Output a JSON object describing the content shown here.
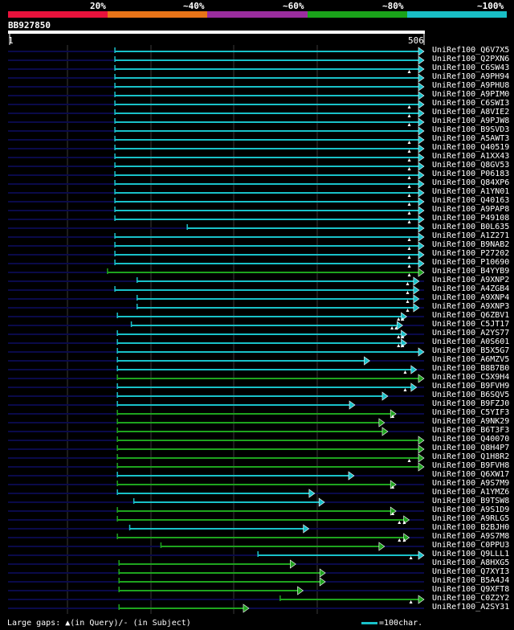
{
  "scale": {
    "segments": [
      {
        "color": "#e8123c"
      },
      {
        "color": "#e87418"
      },
      {
        "color": "#9a2d9e"
      },
      {
        "color": "#1aa31a"
      },
      {
        "color": "#19bfc6"
      }
    ],
    "labels": [
      "20%",
      "~40%",
      "~60%",
      "~80%",
      "~100%"
    ]
  },
  "query": {
    "id": "BB927850",
    "start": "1",
    "end": "506",
    "length": 506
  },
  "colors": {
    "cyan": "#19c1c9",
    "green": "#1ea41e",
    "navy": "#0a0a4a",
    "gap": "#ffffff"
  },
  "hits": [
    {
      "label": "UniRef100_Q6V7X5",
      "qs": 130,
      "qe": 506,
      "c": "cyan",
      "gaps": []
    },
    {
      "label": "UniRef100_Q2PXN6",
      "qs": 130,
      "qe": 506,
      "c": "cyan",
      "gaps": []
    },
    {
      "label": "UniRef100_C6SW43",
      "qs": 130,
      "qe": 506,
      "c": "cyan",
      "gaps": [
        488
      ]
    },
    {
      "label": "UniRef100_A9PH94",
      "qs": 130,
      "qe": 506,
      "c": "cyan",
      "gaps": []
    },
    {
      "label": "UniRef100_A9PHU8",
      "qs": 130,
      "qe": 506,
      "c": "cyan",
      "gaps": []
    },
    {
      "label": "UniRef100_A9PIM0",
      "qs": 130,
      "qe": 506,
      "c": "cyan",
      "gaps": []
    },
    {
      "label": "UniRef100_C6SWI3",
      "qs": 130,
      "qe": 506,
      "c": "cyan",
      "gaps": [
        488
      ]
    },
    {
      "label": "UniRef100_A8VIE2",
      "qs": 130,
      "qe": 506,
      "c": "cyan",
      "gaps": [
        488
      ]
    },
    {
      "label": "UniRef100_A9PJW8",
      "qs": 130,
      "qe": 506,
      "c": "cyan",
      "gaps": [
        488
      ]
    },
    {
      "label": "UniRef100_B9SVD3",
      "qs": 130,
      "qe": 506,
      "c": "cyan",
      "gaps": []
    },
    {
      "label": "UniRef100_A5AWT3",
      "qs": 130,
      "qe": 506,
      "c": "cyan",
      "gaps": [
        488
      ]
    },
    {
      "label": "UniRef100_Q40519",
      "qs": 130,
      "qe": 506,
      "c": "cyan",
      "gaps": [
        488
      ]
    },
    {
      "label": "UniRef100_A1XX43",
      "qs": 130,
      "qe": 506,
      "c": "cyan",
      "gaps": [
        488
      ]
    },
    {
      "label": "UniRef100_Q8GV53",
      "qs": 130,
      "qe": 506,
      "c": "cyan",
      "gaps": [
        488
      ]
    },
    {
      "label": "UniRef100_P06183",
      "qs": 130,
      "qe": 506,
      "c": "cyan",
      "gaps": [
        488
      ]
    },
    {
      "label": "UniRef100_Q84XP6",
      "qs": 130,
      "qe": 506,
      "c": "cyan",
      "gaps": [
        488
      ]
    },
    {
      "label": "UniRef100_A1YN01",
      "qs": 130,
      "qe": 506,
      "c": "cyan",
      "gaps": [
        488
      ]
    },
    {
      "label": "UniRef100_Q40163",
      "qs": 130,
      "qe": 506,
      "c": "cyan",
      "gaps": [
        488
      ]
    },
    {
      "label": "UniRef100_A9PAP8",
      "qs": 130,
      "qe": 506,
      "c": "cyan",
      "gaps": [
        488
      ]
    },
    {
      "label": "UniRef100_P49108",
      "qs": 130,
      "qe": 506,
      "c": "cyan",
      "gaps": [
        488
      ]
    },
    {
      "label": "UniRef100_B0L635",
      "qs": 218,
      "qe": 506,
      "c": "cyan",
      "gaps": []
    },
    {
      "label": "UniRef100_A1Z271",
      "qs": 130,
      "qe": 506,
      "c": "cyan",
      "gaps": [
        488
      ]
    },
    {
      "label": "UniRef100_B9NAB2",
      "qs": 130,
      "qe": 506,
      "c": "cyan",
      "gaps": [
        488
      ]
    },
    {
      "label": "UniRef100_P27202",
      "qs": 130,
      "qe": 506,
      "c": "cyan",
      "gaps": [
        488
      ]
    },
    {
      "label": "UniRef100_P10690",
      "qs": 130,
      "qe": 506,
      "c": "cyan",
      "gaps": [
        488
      ]
    },
    {
      "label": "UniRef100_B4YYB9",
      "qs": 121,
      "qe": 506,
      "c": "green",
      "gaps": [
        488
      ]
    },
    {
      "label": "UniRef100_A9XNP2",
      "qs": 157,
      "qe": 500,
      "c": "cyan",
      "gaps": [
        486
      ]
    },
    {
      "label": "UniRef100_A4ZGB4",
      "qs": 130,
      "qe": 500,
      "c": "cyan",
      "gaps": [
        486
      ]
    },
    {
      "label": "UniRef100_A9XNP4",
      "qs": 157,
      "qe": 500,
      "c": "cyan",
      "gaps": [
        486
      ]
    },
    {
      "label": "UniRef100_A9XNP3",
      "qs": 157,
      "qe": 500,
      "c": "cyan",
      "gaps": [
        486
      ]
    },
    {
      "label": "UniRef100_Q6ZBV1",
      "qs": 133,
      "qe": 485,
      "c": "cyan",
      "gaps": [
        475,
        480
      ]
    },
    {
      "label": "UniRef100_C5JT17",
      "qs": 150,
      "qe": 480,
      "c": "cyan",
      "gaps": [
        467,
        472
      ]
    },
    {
      "label": "UniRef100_A2YS77",
      "qs": 133,
      "qe": 485,
      "c": "cyan",
      "gaps": [
        475,
        480
      ]
    },
    {
      "label": "UniRef100_A0S601",
      "qs": 133,
      "qe": 485,
      "c": "cyan",
      "gaps": [
        475,
        480
      ]
    },
    {
      "label": "UniRef100_B5X5G7",
      "qs": 133,
      "qe": 506,
      "c": "cyan",
      "gaps": []
    },
    {
      "label": "UniRef100_A6MZV5",
      "qs": 133,
      "qe": 440,
      "c": "cyan",
      "gaps": []
    },
    {
      "label": "UniRef100_B8B7B0",
      "qs": 133,
      "qe": 497,
      "c": "cyan",
      "gaps": [
        483
      ]
    },
    {
      "label": "UniRef100_C5X9H4",
      "qs": 133,
      "qe": 506,
      "c": "green",
      "gaps": []
    },
    {
      "label": "UniRef100_B9FVH9",
      "qs": 133,
      "qe": 497,
      "c": "cyan",
      "gaps": [
        483
      ]
    },
    {
      "label": "UniRef100_B6SQV5",
      "qs": 133,
      "qe": 462,
      "c": "cyan",
      "gaps": []
    },
    {
      "label": "UniRef100_B9FZJ0",
      "qs": 133,
      "qe": 422,
      "c": "cyan",
      "gaps": []
    },
    {
      "label": "UniRef100_C5YIF3",
      "qs": 133,
      "qe": 472,
      "c": "green",
      "gaps": [
        468
      ]
    },
    {
      "label": "UniRef100_A9NK29",
      "qs": 133,
      "qe": 458,
      "c": "green",
      "gaps": []
    },
    {
      "label": "UniRef100_B6T3F3",
      "qs": 133,
      "qe": 462,
      "c": "green",
      "gaps": []
    },
    {
      "label": "UniRef100_Q40070",
      "qs": 133,
      "qe": 506,
      "c": "green",
      "gaps": []
    },
    {
      "label": "UniRef100_Q8H4P7",
      "qs": 133,
      "qe": 506,
      "c": "green",
      "gaps": []
    },
    {
      "label": "UniRef100_Q1H8R2",
      "qs": 133,
      "qe": 506,
      "c": "green",
      "gaps": [
        488
      ]
    },
    {
      "label": "UniRef100_B9FVH8",
      "qs": 133,
      "qe": 506,
      "c": "green",
      "gaps": []
    },
    {
      "label": "UniRef100_Q6XW17",
      "qs": 133,
      "qe": 421,
      "c": "cyan",
      "gaps": []
    },
    {
      "label": "UniRef100_A9S7M9",
      "qs": 133,
      "qe": 472,
      "c": "green",
      "gaps": [
        468
      ]
    },
    {
      "label": "UniRef100_A1YMZ6",
      "qs": 133,
      "qe": 373,
      "c": "cyan",
      "gaps": []
    },
    {
      "label": "UniRef100_B9TSW8",
      "qs": 153,
      "qe": 385,
      "c": "cyan",
      "gaps": []
    },
    {
      "label": "UniRef100_A9S1D9",
      "qs": 133,
      "qe": 472,
      "c": "green",
      "gaps": [
        468
      ]
    },
    {
      "label": "UniRef100_A9RLG5",
      "qs": 133,
      "qe": 488,
      "c": "green",
      "gaps": [
        476,
        482
      ]
    },
    {
      "label": "UniRef100_B2BJH0",
      "qs": 148,
      "qe": 366,
      "c": "cyan",
      "gaps": []
    },
    {
      "label": "UniRef100_A9S7M8",
      "qs": 133,
      "qe": 488,
      "c": "green",
      "gaps": [
        476,
        482
      ]
    },
    {
      "label": "UniRef100_C0PPU3",
      "qs": 186,
      "qe": 458,
      "c": "green",
      "gaps": []
    },
    {
      "label": "UniRef100_Q9LLL1",
      "qs": 304,
      "qe": 506,
      "c": "cyan",
      "gaps": [
        490
      ]
    },
    {
      "label": "UniRef100_A8HXG5",
      "qs": 135,
      "qe": 350,
      "c": "green",
      "gaps": []
    },
    {
      "label": "UniRef100_Q7XYI3",
      "qs": 135,
      "qe": 386,
      "c": "green",
      "gaps": []
    },
    {
      "label": "UniRef100_B5A4J4",
      "qs": 135,
      "qe": 386,
      "c": "green",
      "gaps": []
    },
    {
      "label": "UniRef100_Q9XFT8",
      "qs": 135,
      "qe": 359,
      "c": "green",
      "gaps": []
    },
    {
      "label": "UniRef100_C0Z2Y2",
      "qs": 331,
      "qe": 506,
      "c": "green",
      "gaps": [
        490
      ]
    },
    {
      "label": "UniRef100_A2SY31",
      "qs": 135,
      "qe": 293,
      "c": "green",
      "gaps": []
    }
  ],
  "legend": {
    "gaps_text": "Large gaps: ▲(in Query)/- (in Subject)",
    "scale_text": "=100char."
  }
}
